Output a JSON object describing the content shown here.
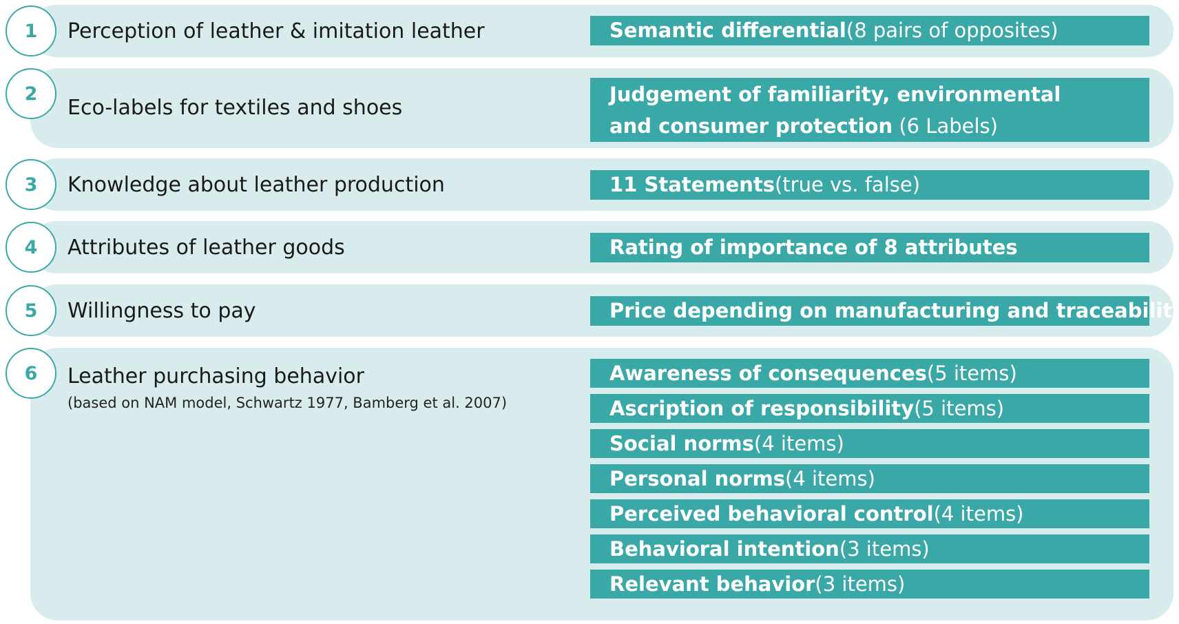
{
  "colors": {
    "accent": "#3ba8a8",
    "panel": "#d9eced",
    "text": "#1a1a1a",
    "bar_text": "#ffffff"
  },
  "sections": [
    {
      "number": "1",
      "topic": "Perception of leather & imitation leather",
      "method": {
        "bold": "Semantic differential",
        "rest": " (8 pairs of opposites)"
      }
    },
    {
      "number": "2",
      "topic": "Eco-labels for textiles and shoes",
      "method_line1": "Judgement of familiarity, environmental",
      "method_line2": {
        "bold": "and consumer protection",
        "rest": " (6 Labels)"
      }
    },
    {
      "number": "3",
      "topic": "Knowledge about leather production",
      "method": {
        "bold": "11 Statements",
        "rest": " (true vs. false)"
      }
    },
    {
      "number": "4",
      "topic": "Attributes of leather goods",
      "method": {
        "bold": "Rating of importance of 8 attributes",
        "rest": ""
      }
    },
    {
      "number": "5",
      "topic": "Willingness to pay",
      "method": {
        "bold": "Price depending on manufacturing and traceability",
        "rest": ""
      }
    },
    {
      "number": "6",
      "topic": "Leather purchasing behavior",
      "note": "(based on NAM model, Schwartz 1977, Bamberg et al. 2007)",
      "items": [
        {
          "bold": "Awareness of consequences",
          "rest": " (5 items)"
        },
        {
          "bold": "Ascription of responsibility",
          "rest": " (5 items)"
        },
        {
          "bold": "Social norms",
          "rest": " (4 items)"
        },
        {
          "bold": "Personal norms",
          "rest": " (4 items)"
        },
        {
          "bold": "Perceived behavioral control",
          "rest": " (4 items)"
        },
        {
          "bold": "Behavioral intention",
          "rest": " (3 items)"
        },
        {
          "bold": "Relevant behavior",
          "rest": " (3 items)"
        }
      ]
    }
  ]
}
